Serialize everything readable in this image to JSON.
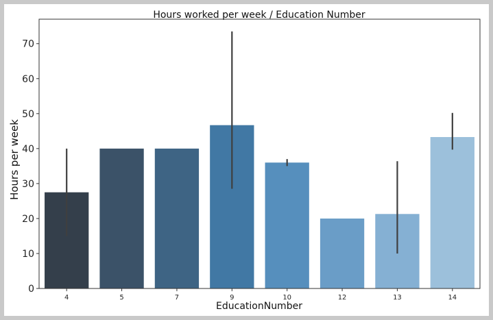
{
  "chart_data": {
    "type": "bar",
    "title": "Hours worked per week / Education Number",
    "xlabel": "EducationNumber",
    "ylabel": "Hours per week",
    "categories": [
      "4",
      "5",
      "7",
      "9",
      "10",
      "12",
      "13",
      "14"
    ],
    "values": [
      27.5,
      40,
      40,
      46.7,
      36,
      20,
      21.3,
      43.3
    ],
    "error_low": [
      15,
      40,
      40,
      28.5,
      35,
      20,
      10,
      39.7
    ],
    "error_high": [
      40,
      40,
      40,
      73.5,
      37,
      20,
      36.4,
      50.2
    ],
    "colors": [
      "#343f4b",
      "#3b5268",
      "#3e6484",
      "#4178a4",
      "#568fbd",
      "#6a9dc7",
      "#85b0d3",
      "#9cc0db"
    ],
    "yticks": [
      0,
      10,
      20,
      30,
      40,
      50,
      60,
      70
    ],
    "ylim": [
      0,
      77
    ],
    "grid": false,
    "legend": "none"
  }
}
